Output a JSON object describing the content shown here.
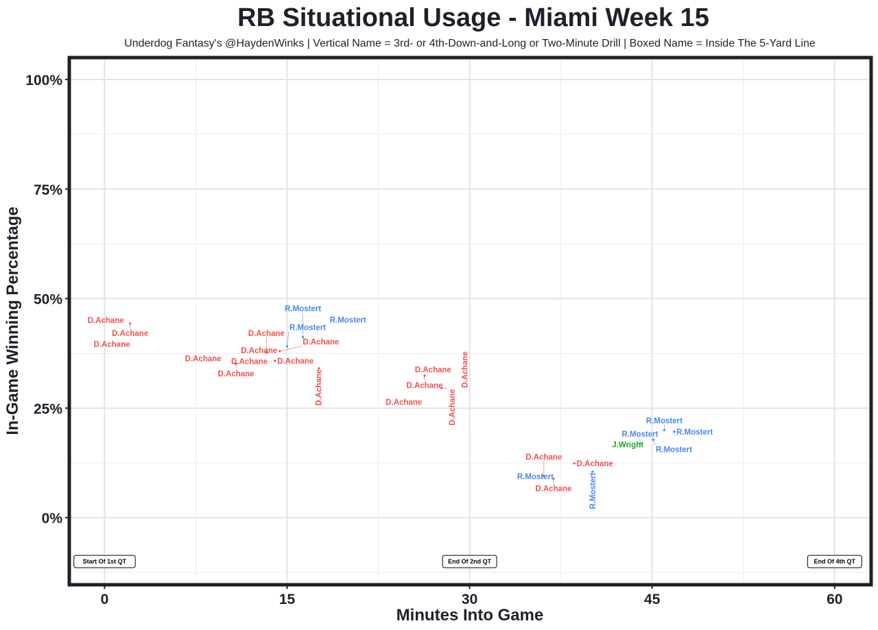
{
  "chart_data": {
    "type": "scatter",
    "title": "RB Situational Usage - Miami Week 15",
    "subtitle": "Underdog Fantasy's @HaydenWinks | Vertical Name = 3rd- or 4th-Down-and-Long or Two-Minute Drill | Boxed Name = Inside The 5-Yard Line",
    "xlabel": "Minutes Into Game",
    "ylabel": "In-Game Winning Percentage",
    "xlim": [
      -2.9,
      63
    ],
    "ylim": [
      -15.3,
      105
    ],
    "x_ticks": [
      0,
      15,
      30,
      45,
      60
    ],
    "x_tick_labels": [
      "0",
      "15",
      "30",
      "45",
      "60"
    ],
    "y_ticks": [
      0,
      25,
      50,
      75,
      100
    ],
    "y_tick_labels": [
      "0%",
      "25%",
      "50%",
      "75%",
      "100%"
    ],
    "grid": true,
    "colors": {
      "D.Achane": "#f0504f",
      "R.Mostert": "#4a86f0",
      "J.Wright": "#1fa81f"
    },
    "points": [
      {
        "x": 0.1,
        "y": 45.1,
        "label": "D.Achane",
        "vertical": false
      },
      {
        "x": 2.1,
        "y": 44.3,
        "label": "D.Achane",
        "vertical": false
      },
      {
        "x": 0.6,
        "y": 39.6,
        "label": "D.Achane",
        "vertical": false
      },
      {
        "x": 8.1,
        "y": 36.3,
        "label": "D.Achane",
        "vertical": false
      },
      {
        "x": 10.8,
        "y": 35.1,
        "label": "D.Achane",
        "vertical": false
      },
      {
        "x": 11.9,
        "y": 35.7,
        "label": "D.Achane",
        "vertical": false
      },
      {
        "x": 14.0,
        "y": 35.8,
        "label": "D.Achane",
        "vertical": false
      },
      {
        "x": 12.7,
        "y": 38.2,
        "label": "D.Achane",
        "vertical": false
      },
      {
        "x": 13.3,
        "y": 37.7,
        "label": "D.Achane",
        "vertical": false
      },
      {
        "x": 14.4,
        "y": 38.0,
        "label": "D.Achane",
        "vertical": false
      },
      {
        "x": 15.0,
        "y": 39.1,
        "label": "R.Mostert",
        "vertical": false
      },
      {
        "x": 16.3,
        "y": 41.2,
        "label": "R.Mostert",
        "vertical": false
      },
      {
        "x": 20.0,
        "y": 45.2,
        "label": "R.Mostert",
        "vertical": false
      },
      {
        "x": 17.6,
        "y": 34.1,
        "label": "D.Achane",
        "vertical": true
      },
      {
        "x": 27.0,
        "y": 33.8,
        "label": "D.Achane",
        "vertical": false
      },
      {
        "x": 26.3,
        "y": 32.4,
        "label": "D.Achane",
        "vertical": false
      },
      {
        "x": 24.6,
        "y": 26.4,
        "label": "D.Achane",
        "vertical": false
      },
      {
        "x": 27.7,
        "y": 29.6,
        "label": "D.Achane",
        "vertical": true
      },
      {
        "x": 29.6,
        "y": 33.8,
        "label": "D.Achane",
        "vertical": true
      },
      {
        "x": 35.4,
        "y": 9.4,
        "label": "R.Mostert",
        "vertical": false
      },
      {
        "x": 36.1,
        "y": 9.5,
        "label": "D.Achane",
        "vertical": false
      },
      {
        "x": 36.9,
        "y": 8.9,
        "label": "D.Achane",
        "vertical": false
      },
      {
        "x": 38.6,
        "y": 12.4,
        "label": "D.Achane",
        "vertical": false
      },
      {
        "x": 40.1,
        "y": 10.5,
        "label": "R.Mostert",
        "vertical": true
      },
      {
        "x": 43.0,
        "y": 16.7,
        "label": "J.Wright",
        "vertical": false
      },
      {
        "x": 44.0,
        "y": 16.9,
        "label": "R.Mostert",
        "vertical": false
      },
      {
        "x": 45.1,
        "y": 17.8,
        "label": "R.Mostert",
        "vertical": false
      },
      {
        "x": 46.0,
        "y": 20.0,
        "label": "R.Mostert",
        "vertical": false
      },
      {
        "x": 46.8,
        "y": 19.6,
        "label": "R.Mostert",
        "vertical": false
      }
    ],
    "annotations": [
      {
        "x": 0,
        "y": -10,
        "text": "Start Of 1st QT"
      },
      {
        "x": 30,
        "y": -10,
        "text": "End Of 2nd QT"
      },
      {
        "x": 60,
        "y": -10,
        "text": "End Of 4th QT"
      }
    ]
  }
}
